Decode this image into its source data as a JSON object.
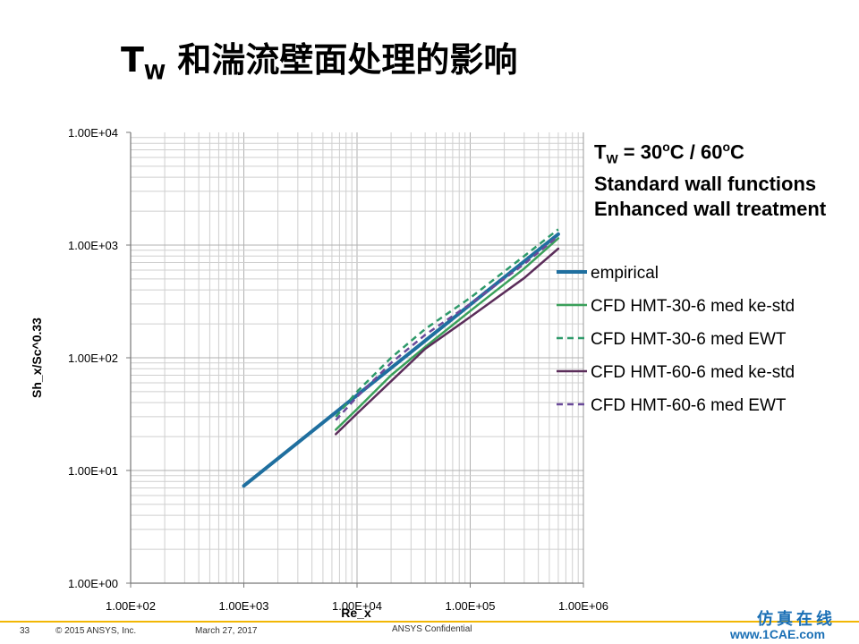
{
  "page": {
    "title_main": "T",
    "title_sub": "W",
    "title_rest": " 和湍流壁面处理的影响",
    "annotation": {
      "line1_prefix": "T",
      "line1_sub": "W",
      "line1_rest1": " = 30",
      "line1_deg1": "o",
      "line1_rest2": "C / 60",
      "line1_deg2": "o",
      "line1_rest3": "C",
      "line2": "Standard wall functions",
      "line3": "Enhanced wall treatment"
    },
    "footer": {
      "page_number": "33",
      "copyright": "© 2015 ANSYS, Inc.",
      "date": "March 27, 2017",
      "confidential": "ANSYS Confidential",
      "brand_cn": "仿真在线",
      "brand_url": "www.1CAE.com"
    }
  },
  "chart_data": {
    "type": "line",
    "xlabel": "Re_x",
    "ylabel": "Sh_x/Sc^0.33",
    "x_scale": "log",
    "y_scale": "log",
    "xlim": [
      100,
      1000000
    ],
    "ylim": [
      1,
      10000
    ],
    "x_ticks": [
      "1.00E+02",
      "1.00E+03",
      "1.00E+04",
      "1.00E+05",
      "1.00E+06"
    ],
    "y_ticks": [
      "1.00E+00",
      "1.00E+01",
      "1.00E+02",
      "1.00E+03",
      "1.00E+04"
    ],
    "grid": true,
    "legend_position": "right",
    "series": [
      {
        "name": "empirical",
        "color": "#1f6f9f",
        "dash": "solid",
        "width": 4,
        "x": [
          1000,
          600000
        ],
        "y": [
          7.3,
          1250
        ]
      },
      {
        "name": "CFD HMT-30-6 med ke-std",
        "color": "#3aa05a",
        "dash": "solid",
        "width": 2.5,
        "x": [
          6500,
          10000,
          20000,
          40000,
          100000,
          300000,
          600000
        ],
        "y": [
          23,
          35,
          70,
          125,
          260,
          620,
          1150
        ]
      },
      {
        "name": "CFD HMT-30-6 med EWT",
        "color": "#2e9a6a",
        "dash": "dashed",
        "width": 2.5,
        "x": [
          6500,
          10000,
          20000,
          40000,
          100000,
          300000,
          600000
        ],
        "y": [
          30,
          50,
          100,
          180,
          340,
          800,
          1380
        ]
      },
      {
        "name": "CFD HMT-60-6 med ke-std",
        "color": "#5b2d5a",
        "dash": "solid",
        "width": 2.5,
        "x": [
          6500,
          10000,
          20000,
          40000,
          100000,
          300000,
          600000
        ],
        "y": [
          21,
          32,
          62,
          120,
          230,
          510,
          930
        ]
      },
      {
        "name": "CFD HMT-60-6 med EWT",
        "color": "#6a4a9a",
        "dash": "dashed",
        "width": 2.5,
        "x": [
          6500,
          10000,
          20000,
          40000,
          100000,
          300000,
          600000
        ],
        "y": [
          28,
          45,
          90,
          160,
          300,
          680,
          1200
        ]
      }
    ]
  }
}
